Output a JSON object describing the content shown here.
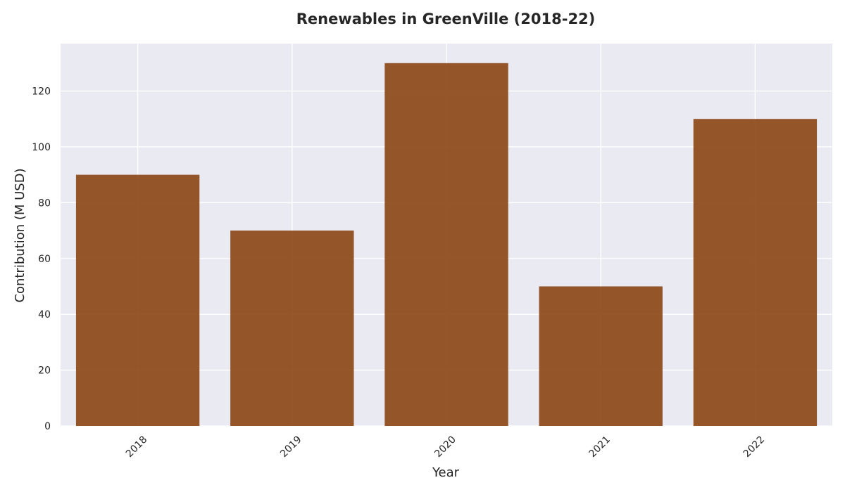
{
  "chart_data": {
    "type": "bar",
    "title": "Renewables in GreenVille (2018-22)",
    "xlabel": "Year",
    "ylabel": "Contribution (M USD)",
    "categories": [
      "2018",
      "2019",
      "2020",
      "2021",
      "2022"
    ],
    "values": [
      90,
      70,
      130,
      50,
      110
    ],
    "ylim": [
      0,
      137
    ],
    "yticks": [
      0,
      20,
      40,
      60,
      80,
      100,
      120
    ],
    "grid": true,
    "legend": "none",
    "colors": {
      "bar": "#8B4513",
      "plot_background": "#EAEAF2",
      "grid": "#FFFFFF"
    }
  }
}
